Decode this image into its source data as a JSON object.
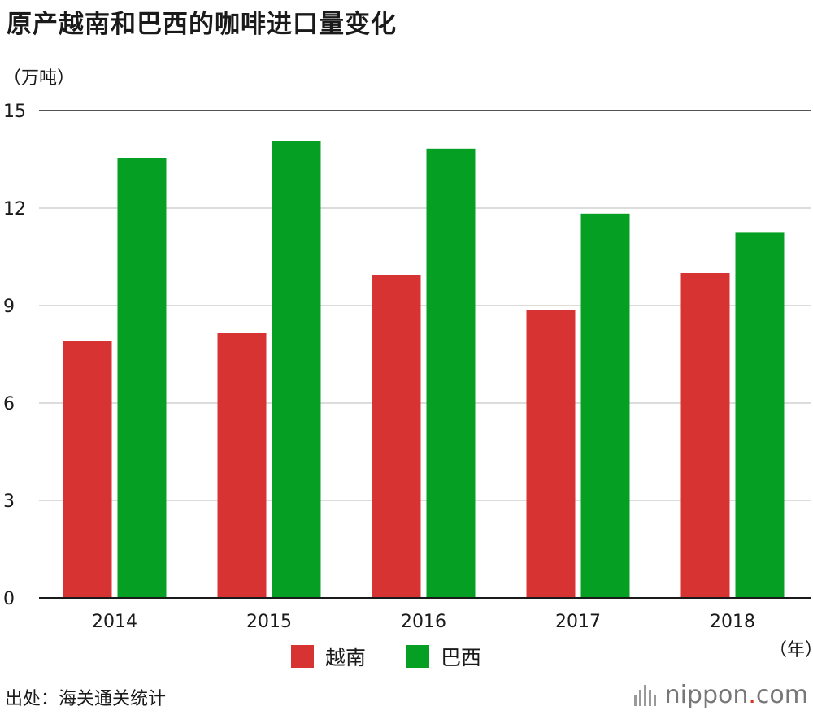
{
  "title": "原产越南和巴西的咖啡进口量变化",
  "source": "出处：海关通关统计",
  "logo": {
    "name": "nippon",
    "dot": ".",
    "domain": "com"
  },
  "chart_data": {
    "type": "bar",
    "title": "原产越南和巴西的咖啡进口量变化",
    "ylabel": "（万吨）",
    "xlabel": "（年）",
    "categories": [
      "2014",
      "2015",
      "2016",
      "2017",
      "2018"
    ],
    "series": [
      {
        "name": "越南",
        "color": "#d73333",
        "values": [
          7.9,
          8.15,
          9.95,
          8.87,
          10.0
        ]
      },
      {
        "name": "巴西",
        "color": "#05a023",
        "values": [
          13.55,
          14.05,
          13.83,
          11.83,
          11.24
        ]
      }
    ],
    "ylim": [
      0,
      15
    ],
    "yticks": [
      0,
      3,
      6,
      9,
      12,
      15
    ],
    "grid": true,
    "legend": "bottom"
  }
}
